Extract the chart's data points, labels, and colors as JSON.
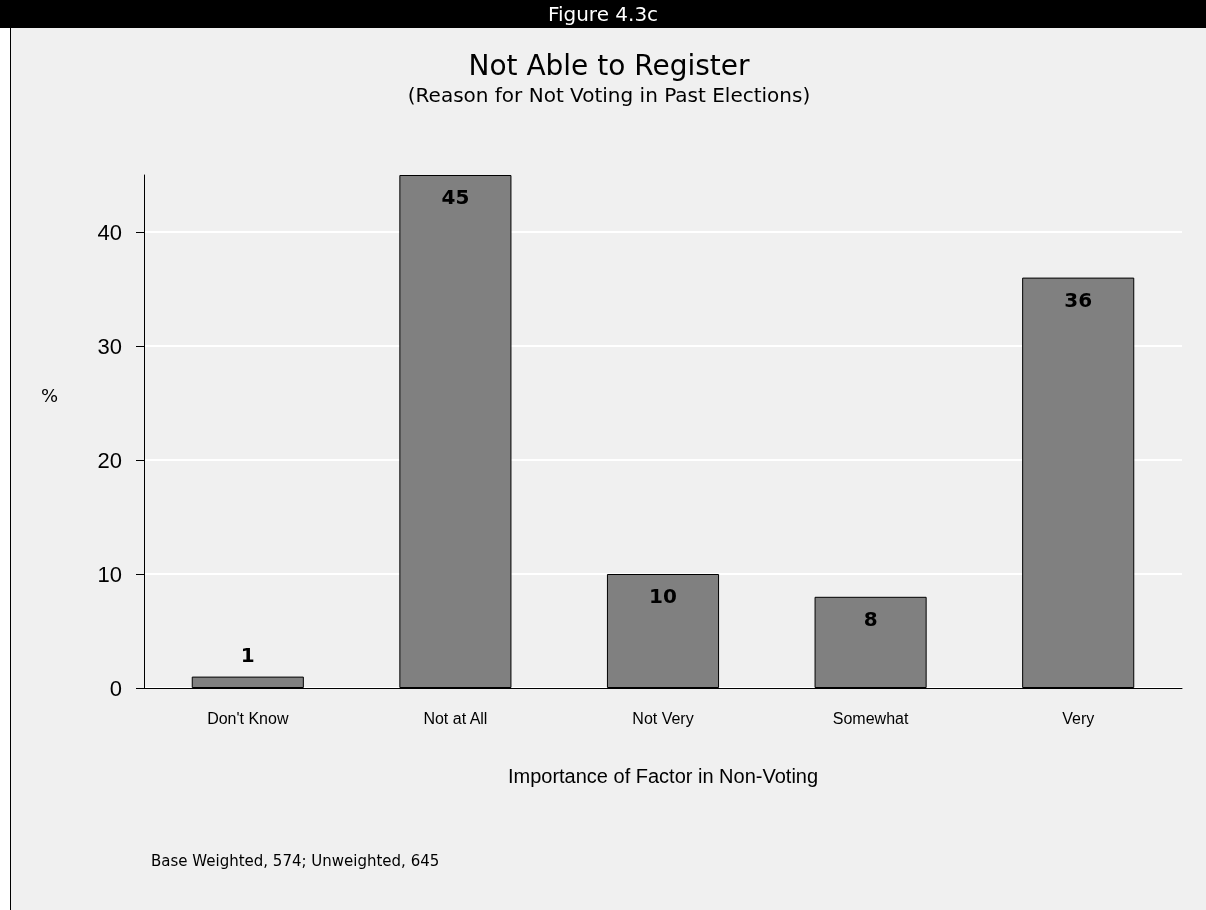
{
  "chart_data": {
    "type": "bar",
    "title": "Not Able to Register",
    "subtitle": "(Reason for Not Voting in Past Elections)",
    "xlabel": "Importance of Factor in Non-Voting",
    "ylabel": "%",
    "annotations": [
      "Figure 4.3c",
      "Base Weighted, 574; Unweighted, 645"
    ],
    "categories": [
      "Don't Know",
      "Not at All",
      "Not Very",
      "Somewhat",
      "Very"
    ],
    "values": [
      1,
      45,
      10,
      8,
      36
    ],
    "data_labels": true,
    "color": "#808080",
    "ylim": [
      0,
      45
    ],
    "yticks": [
      0,
      10,
      20,
      30,
      40
    ],
    "grid": "y"
  }
}
